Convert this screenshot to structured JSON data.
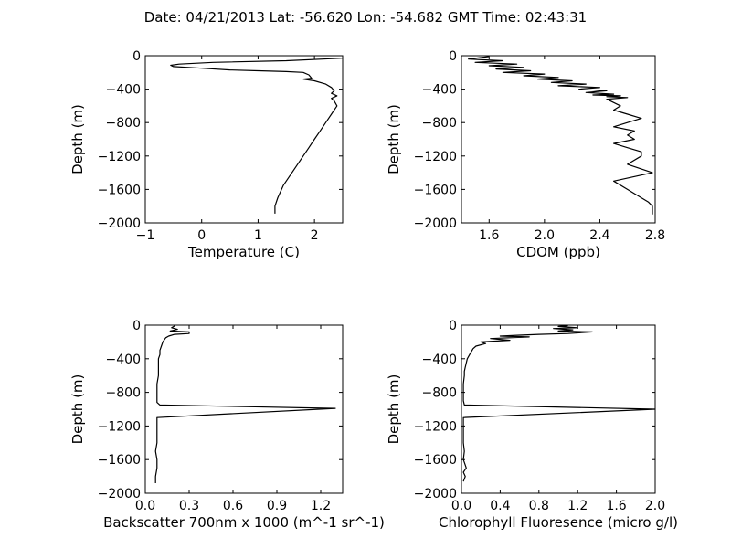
{
  "figure": {
    "title": "Date: 04/21/2013  Lat:  -56.620 Lon:  -54.682  GMT Time: 02:43:31"
  },
  "chart_data": [
    {
      "type": "line",
      "xlabel": "Temperature (C)",
      "ylabel": "Depth (m)",
      "xlim": [
        -1,
        2.5
      ],
      "ylim": [
        -2000,
        0
      ],
      "xticks": [
        -1,
        0,
        1,
        2
      ],
      "xtick_labels": [
        "−1",
        "0",
        "1",
        "2"
      ],
      "yticks": [
        0,
        -400,
        -800,
        -1200,
        -1600,
        -2000
      ],
      "ytick_labels": [
        "0",
        "−400",
        "−800",
        "−1200",
        "−1600",
        "−2000"
      ],
      "series": [
        {
          "x": [
            2.5,
            1.5,
            0.2,
            -0.4,
            -0.55,
            -0.5,
            0.0,
            0.5,
            1.0,
            1.5,
            1.8,
            1.9,
            1.95,
            1.8,
            2.0,
            2.2,
            2.3,
            2.35,
            2.3,
            2.4,
            2.3,
            2.35,
            2.4,
            2.3,
            2.2,
            2.1,
            2.0,
            1.9,
            1.75,
            1.6,
            1.45,
            1.35,
            1.3,
            1.3
          ],
          "y": [
            -30,
            -60,
            -80,
            -100,
            -115,
            -130,
            -150,
            -170,
            -180,
            -190,
            -200,
            -230,
            -270,
            -280,
            -300,
            -340,
            -380,
            -420,
            -450,
            -480,
            -510,
            -540,
            -600,
            -700,
            -800,
            -900,
            -1000,
            -1100,
            -1250,
            -1400,
            -1550,
            -1700,
            -1800,
            -1890
          ]
        }
      ]
    },
    {
      "type": "line",
      "xlabel": "CDOM (ppb)",
      "ylabel": "Depth (m)",
      "xlim": [
        1.4,
        2.8
      ],
      "ylim": [
        -2000,
        0
      ],
      "xticks": [
        1.6,
        2.0,
        2.4,
        2.8
      ],
      "xtick_labels": [
        "1.6",
        "2.0",
        "2.4",
        "2.8"
      ],
      "yticks": [
        0,
        -400,
        -800,
        -1200,
        -1600,
        -2000
      ],
      "ytick_labels": [
        "0",
        "−400",
        "−800",
        "−1200",
        "−1600",
        "−2000"
      ],
      "series": [
        {
          "x": [
            1.6,
            1.45,
            1.7,
            1.5,
            1.8,
            1.6,
            1.85,
            1.65,
            1.9,
            1.7,
            2.0,
            1.85,
            2.1,
            1.95,
            2.2,
            2.05,
            2.3,
            2.1,
            2.4,
            2.25,
            2.45,
            2.3,
            2.5,
            2.35,
            2.55,
            2.45,
            2.6,
            2.45,
            2.55,
            2.5,
            2.6,
            2.7,
            2.6,
            2.5,
            2.65,
            2.6,
            2.65,
            2.5,
            2.6,
            2.7,
            2.7,
            2.6,
            2.78,
            2.5,
            2.6,
            2.65,
            2.75,
            2.78,
            2.78
          ],
          "y": [
            -10,
            -40,
            -60,
            -80,
            -100,
            -120,
            -140,
            -160,
            -180,
            -200,
            -220,
            -240,
            -260,
            -280,
            -300,
            -320,
            -340,
            -360,
            -380,
            -400,
            -420,
            -440,
            -460,
            -470,
            -480,
            -490,
            -500,
            -520,
            -600,
            -650,
            -700,
            -750,
            -800,
            -850,
            -900,
            -950,
            -1000,
            -1050,
            -1100,
            -1150,
            -1200,
            -1300,
            -1400,
            -1500,
            -1600,
            -1650,
            -1750,
            -1800,
            -1900
          ]
        }
      ]
    },
    {
      "type": "line",
      "xlabel": "Backscatter 700nm x 1000 (m^-1 sr^-1)",
      "ylabel": "Depth (m)",
      "xlim": [
        0.0,
        1.35
      ],
      "ylim": [
        -2000,
        0
      ],
      "xticks": [
        0.0,
        0.3,
        0.6,
        0.9,
        1.2
      ],
      "xtick_labels": [
        "0.0",
        "0.3",
        "0.6",
        "0.9",
        "1.2"
      ],
      "yticks": [
        0,
        -400,
        -800,
        -1200,
        -1600,
        -2000
      ],
      "ytick_labels": [
        "0",
        "−400",
        "−800",
        "−1200",
        "−1600",
        "−2000"
      ],
      "series": [
        {
          "x": [
            0.2,
            0.18,
            0.22,
            0.17,
            0.3,
            0.3,
            0.2,
            0.16,
            0.14,
            0.12,
            0.11,
            0.1,
            0.1,
            0.09,
            0.09,
            0.09,
            0.08,
            0.08,
            0.08,
            0.08,
            0.1,
            1.3,
            0.08,
            0.08,
            0.08,
            0.08,
            0.07,
            0.08,
            0.08,
            0.07,
            0.07
          ],
          "y": [
            -10,
            -30,
            -50,
            -70,
            -80,
            -100,
            -110,
            -130,
            -150,
            -200,
            -250,
            -300,
            -350,
            -400,
            -500,
            -600,
            -700,
            -800,
            -900,
            -920,
            -950,
            -990,
            -1100,
            -1200,
            -1300,
            -1400,
            -1500,
            -1600,
            -1700,
            -1800,
            -1880
          ]
        }
      ]
    },
    {
      "type": "line",
      "xlabel": "Chlorophyll Fluoresence (micro g/l)",
      "ylabel": "Depth (m)",
      "xlim": [
        0.0,
        2.0
      ],
      "ylim": [
        -2000,
        0
      ],
      "xticks": [
        0.0,
        0.4,
        0.8,
        1.2,
        1.6,
        2.0
      ],
      "xtick_labels": [
        "0.0",
        "0.4",
        "0.8",
        "1.2",
        "1.6",
        "2.0"
      ],
      "yticks": [
        0,
        -400,
        -800,
        -1200,
        -1600,
        -2000
      ],
      "ytick_labels": [
        "0",
        "−400",
        "−800",
        "−1200",
        "−1600",
        "−2000"
      ],
      "series": [
        {
          "x": [
            1.1,
            1.0,
            1.2,
            0.95,
            1.15,
            1.0,
            1.35,
            1.1,
            0.8,
            0.6,
            0.4,
            0.7,
            0.3,
            0.5,
            0.2,
            0.25,
            0.15,
            0.12,
            0.1,
            0.08,
            0.06,
            0.05,
            0.04,
            0.03,
            0.03,
            0.02,
            0.02,
            0.02,
            0.03,
            2.0,
            0.02,
            0.02,
            0.02,
            0.02,
            0.03,
            0.02,
            0.05,
            0.02,
            0.04,
            0.02
          ],
          "y": [
            -5,
            -15,
            -30,
            -40,
            -55,
            -70,
            -80,
            -100,
            -110,
            -120,
            -130,
            -140,
            -160,
            -180,
            -200,
            -220,
            -250,
            -280,
            -320,
            -360,
            -400,
            -450,
            -500,
            -550,
            -600,
            -700,
            -800,
            -900,
            -950,
            -1000,
            -1100,
            -1200,
            -1300,
            -1400,
            -1500,
            -1600,
            -1700,
            -1750,
            -1800,
            -1860
          ]
        }
      ]
    }
  ]
}
